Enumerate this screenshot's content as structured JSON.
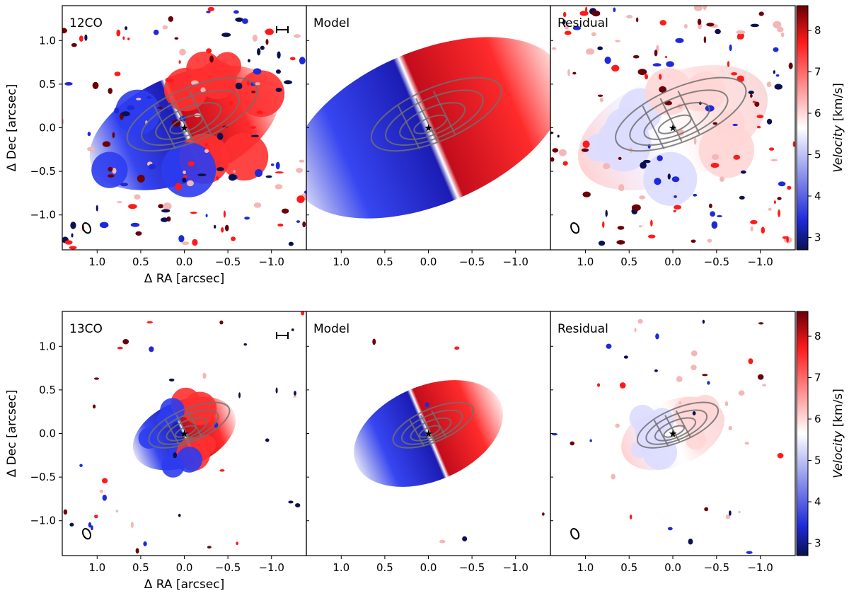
{
  "chart_data": {
    "type": "heatmap",
    "description_type": "velocity maps with model and residual panels",
    "xlabel": "Δ RA [arcsec]",
    "ylabel": "Δ Dec [arcsec]",
    "xlim": [
      1.4,
      -1.4
    ],
    "ylim": [
      -1.4,
      1.4
    ],
    "xticks": [
      1.0,
      0.5,
      0.0,
      -0.5,
      -1.0
    ],
    "xtick_labels": [
      "1.0",
      "0.5",
      "0.0",
      "−0.5",
      "−1.0"
    ],
    "yticks": [
      1.0,
      0.5,
      0.0,
      -0.5,
      -1.0
    ],
    "ytick_labels": [
      "1.0",
      "0.5",
      "0.0",
      "−0.5",
      "−1.0"
    ],
    "colorbar": {
      "label_prefix": "Velocity",
      "label_suffix": " [km/s]",
      "range": [
        2.7,
        8.6
      ],
      "ticks": [
        3,
        4,
        5,
        6,
        7,
        8
      ],
      "tick_labels": [
        "3",
        "4",
        "5",
        "6",
        "7",
        "8"
      ],
      "colormap": [
        "#0a1050",
        "#1e2ad8",
        "#ffffff",
        "#ff1a1a",
        "#6a0008"
      ]
    },
    "disk_model": {
      "position_angle_deg": 113,
      "center": [
        0,
        0
      ],
      "ring_radii_arcsec": [
        0.2,
        0.4,
        0.6,
        0.8
      ],
      "axis_ratio": 0.38
    },
    "rows": [
      {
        "line": "12CO",
        "panels": [
          {
            "label": "12CO",
            "kind": "data"
          },
          {
            "label": "Model",
            "kind": "model"
          },
          {
            "label": "Residual",
            "kind": "residual"
          }
        ]
      },
      {
        "line": "13CO",
        "panels": [
          {
            "label": "13CO",
            "kind": "data"
          },
          {
            "label": "Model",
            "kind": "model"
          },
          {
            "label": "Residual",
            "kind": "residual"
          }
        ]
      }
    ]
  }
}
